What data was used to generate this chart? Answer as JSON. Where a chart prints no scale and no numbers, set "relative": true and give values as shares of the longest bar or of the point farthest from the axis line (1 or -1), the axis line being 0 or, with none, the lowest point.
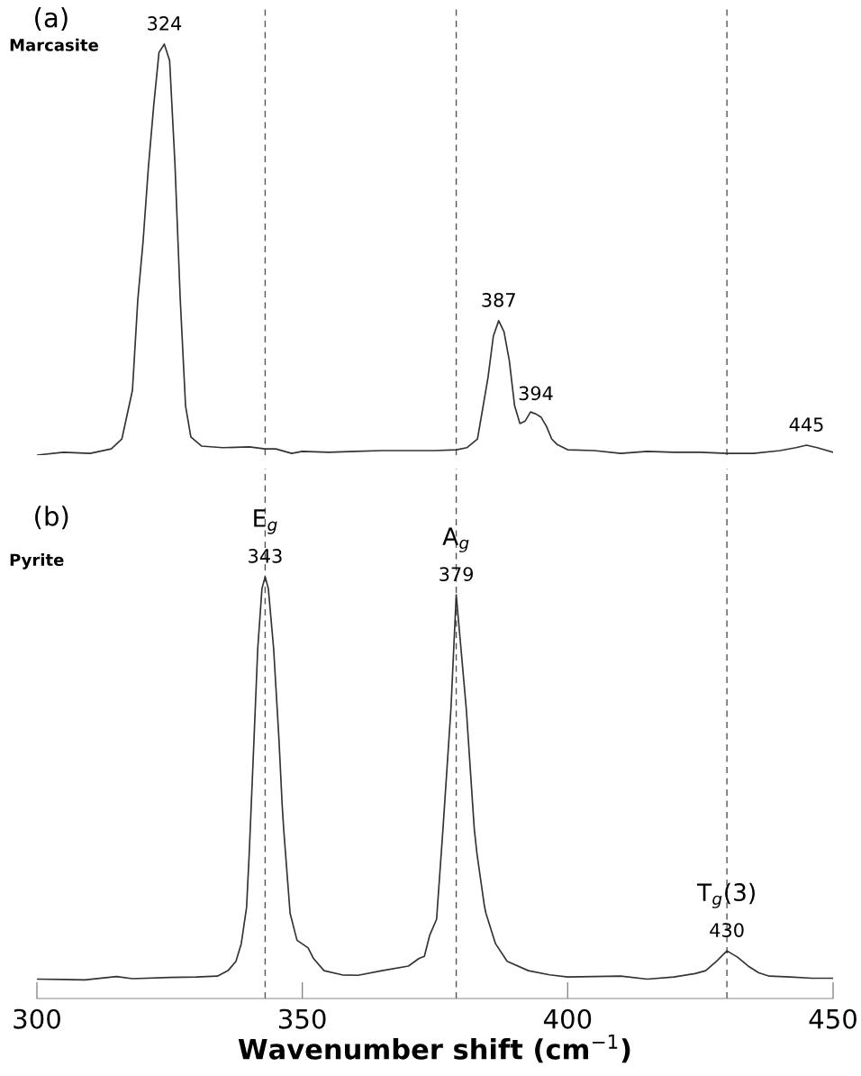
{
  "chart_data": [
    {
      "type": "line",
      "title": "(a)",
      "subtitle": "Marcasite",
      "relative": true,
      "xlim": [
        300,
        450
      ],
      "xticks": [
        300,
        350,
        400,
        450
      ],
      "tick_labels": false,
      "grid": false,
      "marker": "none",
      "line_style": "solid",
      "series": [
        {
          "color": "#333333",
          "x": [
            300,
            305,
            310,
            314,
            316,
            318,
            319,
            320,
            321,
            322,
            323,
            324,
            325,
            326,
            327,
            328,
            329,
            331,
            335,
            340,
            343,
            345,
            348,
            350,
            355,
            360,
            365,
            370,
            375,
            379,
            381,
            383,
            384,
            385,
            386,
            387,
            388,
            389,
            390,
            391,
            392,
            393,
            394,
            395,
            396,
            397,
            398,
            400,
            405,
            410,
            415,
            420,
            425,
            430,
            435,
            440,
            443,
            445,
            447,
            450
          ],
          "values": [
            0,
            0.007,
            0.004,
            0.015,
            0.039,
            0.158,
            0.377,
            0.52,
            0.7,
            0.85,
            0.98,
            1.0,
            0.96,
            0.71,
            0.38,
            0.12,
            0.044,
            0.022,
            0.018,
            0.02,
            0.015,
            0.015,
            0.004,
            0.009,
            0.007,
            0.009,
            0.011,
            0.011,
            0.011,
            0.013,
            0.018,
            0.039,
            0.114,
            0.19,
            0.29,
            0.327,
            0.3,
            0.23,
            0.12,
            0.077,
            0.083,
            0.105,
            0.1,
            0.092,
            0.07,
            0.039,
            0.026,
            0.013,
            0.011,
            0.004,
            0.009,
            0.007,
            0.007,
            0.004,
            0.004,
            0.011,
            0.018,
            0.024,
            0.018,
            0.007
          ]
        }
      ],
      "ref_lines": [
        {
          "axis": "x",
          "value": 343,
          "color": "#555555",
          "line_style": "dashed"
        },
        {
          "axis": "x",
          "value": 379,
          "color": "#555555",
          "line_style": "dashed"
        },
        {
          "axis": "x",
          "value": 430,
          "color": "#555555",
          "line_style": "dashed"
        }
      ],
      "annotations": [
        {
          "text": "324",
          "x": 324,
          "y": 1.0
        },
        {
          "text": "387",
          "x": 387,
          "y": 0.327
        },
        {
          "text": "394",
          "x": 394,
          "y": 0.1
        },
        {
          "text": "445",
          "x": 445,
          "y": 0.024
        }
      ]
    },
    {
      "type": "line",
      "title": "(b)",
      "subtitle": "Pyrite",
      "relative": true,
      "xlabel": "Wavenumber shift (cm$^{−1}$)",
      "xlim": [
        300,
        450
      ],
      "xticks": [
        300,
        350,
        400,
        450
      ],
      "tick_labels": "x",
      "grid": false,
      "marker": "none",
      "line_style": "solid",
      "series": [
        {
          "color": "#333333",
          "x": [
            300,
            305,
            309,
            315,
            318,
            325,
            330,
            334,
            336,
            337.5,
            338.5,
            339.5,
            340,
            340.9,
            341.6,
            342.4,
            343,
            343.6,
            344.6,
            345.6,
            346.2,
            346.5,
            347.7,
            349,
            351.1,
            352.1,
            354.1,
            357.5,
            360.5,
            365,
            370,
            372,
            373,
            374,
            375.3,
            376.5,
            378,
            379,
            380.9,
            382.4,
            382.9,
            384.3,
            384.6,
            386.4,
            388.6,
            392.6,
            396.6,
            400,
            410,
            415,
            420,
            424,
            426,
            428,
            430,
            432,
            434,
            436,
            438,
            442,
            446,
            450
          ],
          "values": [
            0.046,
            0.045,
            0.044,
            0.052,
            0.047,
            0.05,
            0.051,
            0.053,
            0.066,
            0.088,
            0.13,
            0.216,
            0.344,
            0.615,
            0.829,
            0.972,
            1.0,
            0.972,
            0.829,
            0.615,
            0.46,
            0.4,
            0.202,
            0.138,
            0.12,
            0.095,
            0.066,
            0.056,
            0.055,
            0.066,
            0.077,
            0.095,
            0.1,
            0.15,
            0.188,
            0.402,
            0.686,
            0.957,
            0.686,
            0.402,
            0.344,
            0.22,
            0.202,
            0.13,
            0.088,
            0.066,
            0.056,
            0.051,
            0.053,
            0.046,
            0.051,
            0.059,
            0.066,
            0.088,
            0.113,
            0.098,
            0.077,
            0.061,
            0.053,
            0.051,
            0.048,
            0.048
          ]
        }
      ],
      "ref_lines": [
        {
          "axis": "x",
          "value": 343,
          "label": "E$_{g}$",
          "color": "#555555",
          "line_style": "dashed"
        },
        {
          "axis": "x",
          "value": 379,
          "label": "A$_{g}$",
          "color": "#555555",
          "line_style": "dashed"
        },
        {
          "axis": "x",
          "value": 430,
          "label": "T$_{g}$(3)",
          "color": "#555555",
          "line_style": "dashed"
        }
      ],
      "annotations": [
        {
          "text": "343",
          "x": 343,
          "y": 1.0
        },
        {
          "text": "379",
          "x": 379,
          "y": 0.957
        },
        {
          "text": "430",
          "x": 430,
          "y": 0.113
        }
      ]
    }
  ]
}
